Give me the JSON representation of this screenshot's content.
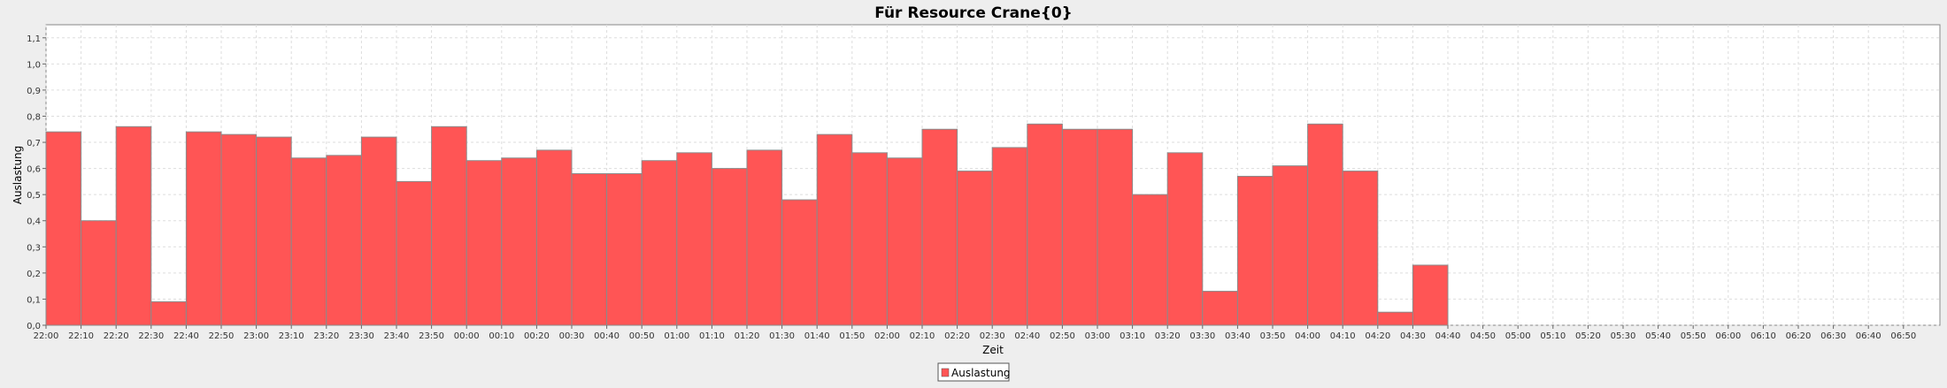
{
  "chart_data": {
    "type": "bar",
    "title": "Für Resource Crane{0}",
    "xlabel": "Zeit",
    "ylabel": "Auslastung",
    "ylim": [
      0,
      1.15
    ],
    "yticks": [
      "0,0",
      "0,1",
      "0,2",
      "0,3",
      "0,4",
      "0,5",
      "0,6",
      "0,7",
      "0,8",
      "0,9",
      "1,0",
      "1,1"
    ],
    "xticks": [
      "22:00",
      "22:10",
      "22:20",
      "22:30",
      "22:40",
      "22:50",
      "23:00",
      "23:10",
      "23:20",
      "23:30",
      "23:40",
      "23:50",
      "00:00",
      "00:10",
      "00:20",
      "00:30",
      "00:40",
      "00:50",
      "01:00",
      "01:10",
      "01:20",
      "01:30",
      "01:40",
      "01:50",
      "02:00",
      "02:10",
      "02:20",
      "02:30",
      "02:40",
      "02:50",
      "03:00",
      "03:10",
      "03:20",
      "03:30",
      "03:40",
      "03:50",
      "04:00",
      "04:10",
      "04:20",
      "04:30",
      "04:40",
      "04:50",
      "05:00",
      "05:10",
      "05:20",
      "05:30",
      "05:40",
      "05:50",
      "06:00",
      "06:10",
      "06:20",
      "06:30",
      "06:40",
      "06:50"
    ],
    "series": [
      {
        "name": "Auslastung",
        "color": "#ff5555",
        "values": [
          0.74,
          0.4,
          0.76,
          0.09,
          0.74,
          0.73,
          0.72,
          0.64,
          0.65,
          0.72,
          0.55,
          0.76,
          0.63,
          0.64,
          0.67,
          0.58,
          0.58,
          0.63,
          0.66,
          0.6,
          0.67,
          0.48,
          0.73,
          0.66,
          0.64,
          0.75,
          0.59,
          0.68,
          0.77,
          0.75,
          0.75,
          0.5,
          0.66,
          0.13,
          0.57,
          0.61,
          0.77,
          0.59,
          0.05,
          0.23
        ]
      }
    ],
    "grid": true,
    "legend": "bottom-center"
  }
}
